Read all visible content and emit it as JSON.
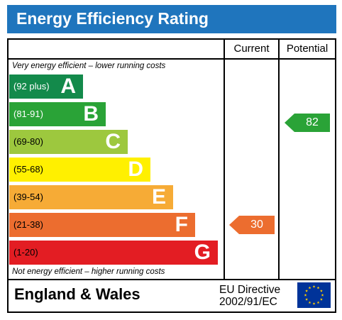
{
  "header": {
    "title": "Energy Efficiency Rating"
  },
  "columns": {
    "current": "Current",
    "potential": "Potential"
  },
  "notes": {
    "top": "Very energy efficient – lower running costs",
    "bottom": "Not energy efficient – higher running costs"
  },
  "bands": [
    {
      "range": "(92 plus)",
      "letter": "A",
      "color": "#138a4b",
      "range_color": "#ffffff"
    },
    {
      "range": "(81-91)",
      "letter": "B",
      "color": "#2aa337",
      "range_color": "#ffffff"
    },
    {
      "range": "(69-80)",
      "letter": "C",
      "color": "#9dc83e",
      "range_color": "#000000"
    },
    {
      "range": "(55-68)",
      "letter": "D",
      "color": "#fff000",
      "range_color": "#000000"
    },
    {
      "range": "(39-54)",
      "letter": "E",
      "color": "#f6ab36",
      "range_color": "#000000"
    },
    {
      "range": "(21-38)",
      "letter": "F",
      "color": "#ec6d2f",
      "range_color": "#000000"
    },
    {
      "range": "(1-20)",
      "letter": "G",
      "color": "#e31d23",
      "range_color": "#000000"
    }
  ],
  "ratings": {
    "current": {
      "value": "30",
      "color": "#ec6d2f"
    },
    "potential": {
      "value": "82",
      "color": "#2aa337"
    }
  },
  "footer": {
    "country": "England & Wales",
    "directive_line1": "EU Directive",
    "directive_line2": "2002/91/EC",
    "flag_icon": "eu-flag-icon"
  }
}
